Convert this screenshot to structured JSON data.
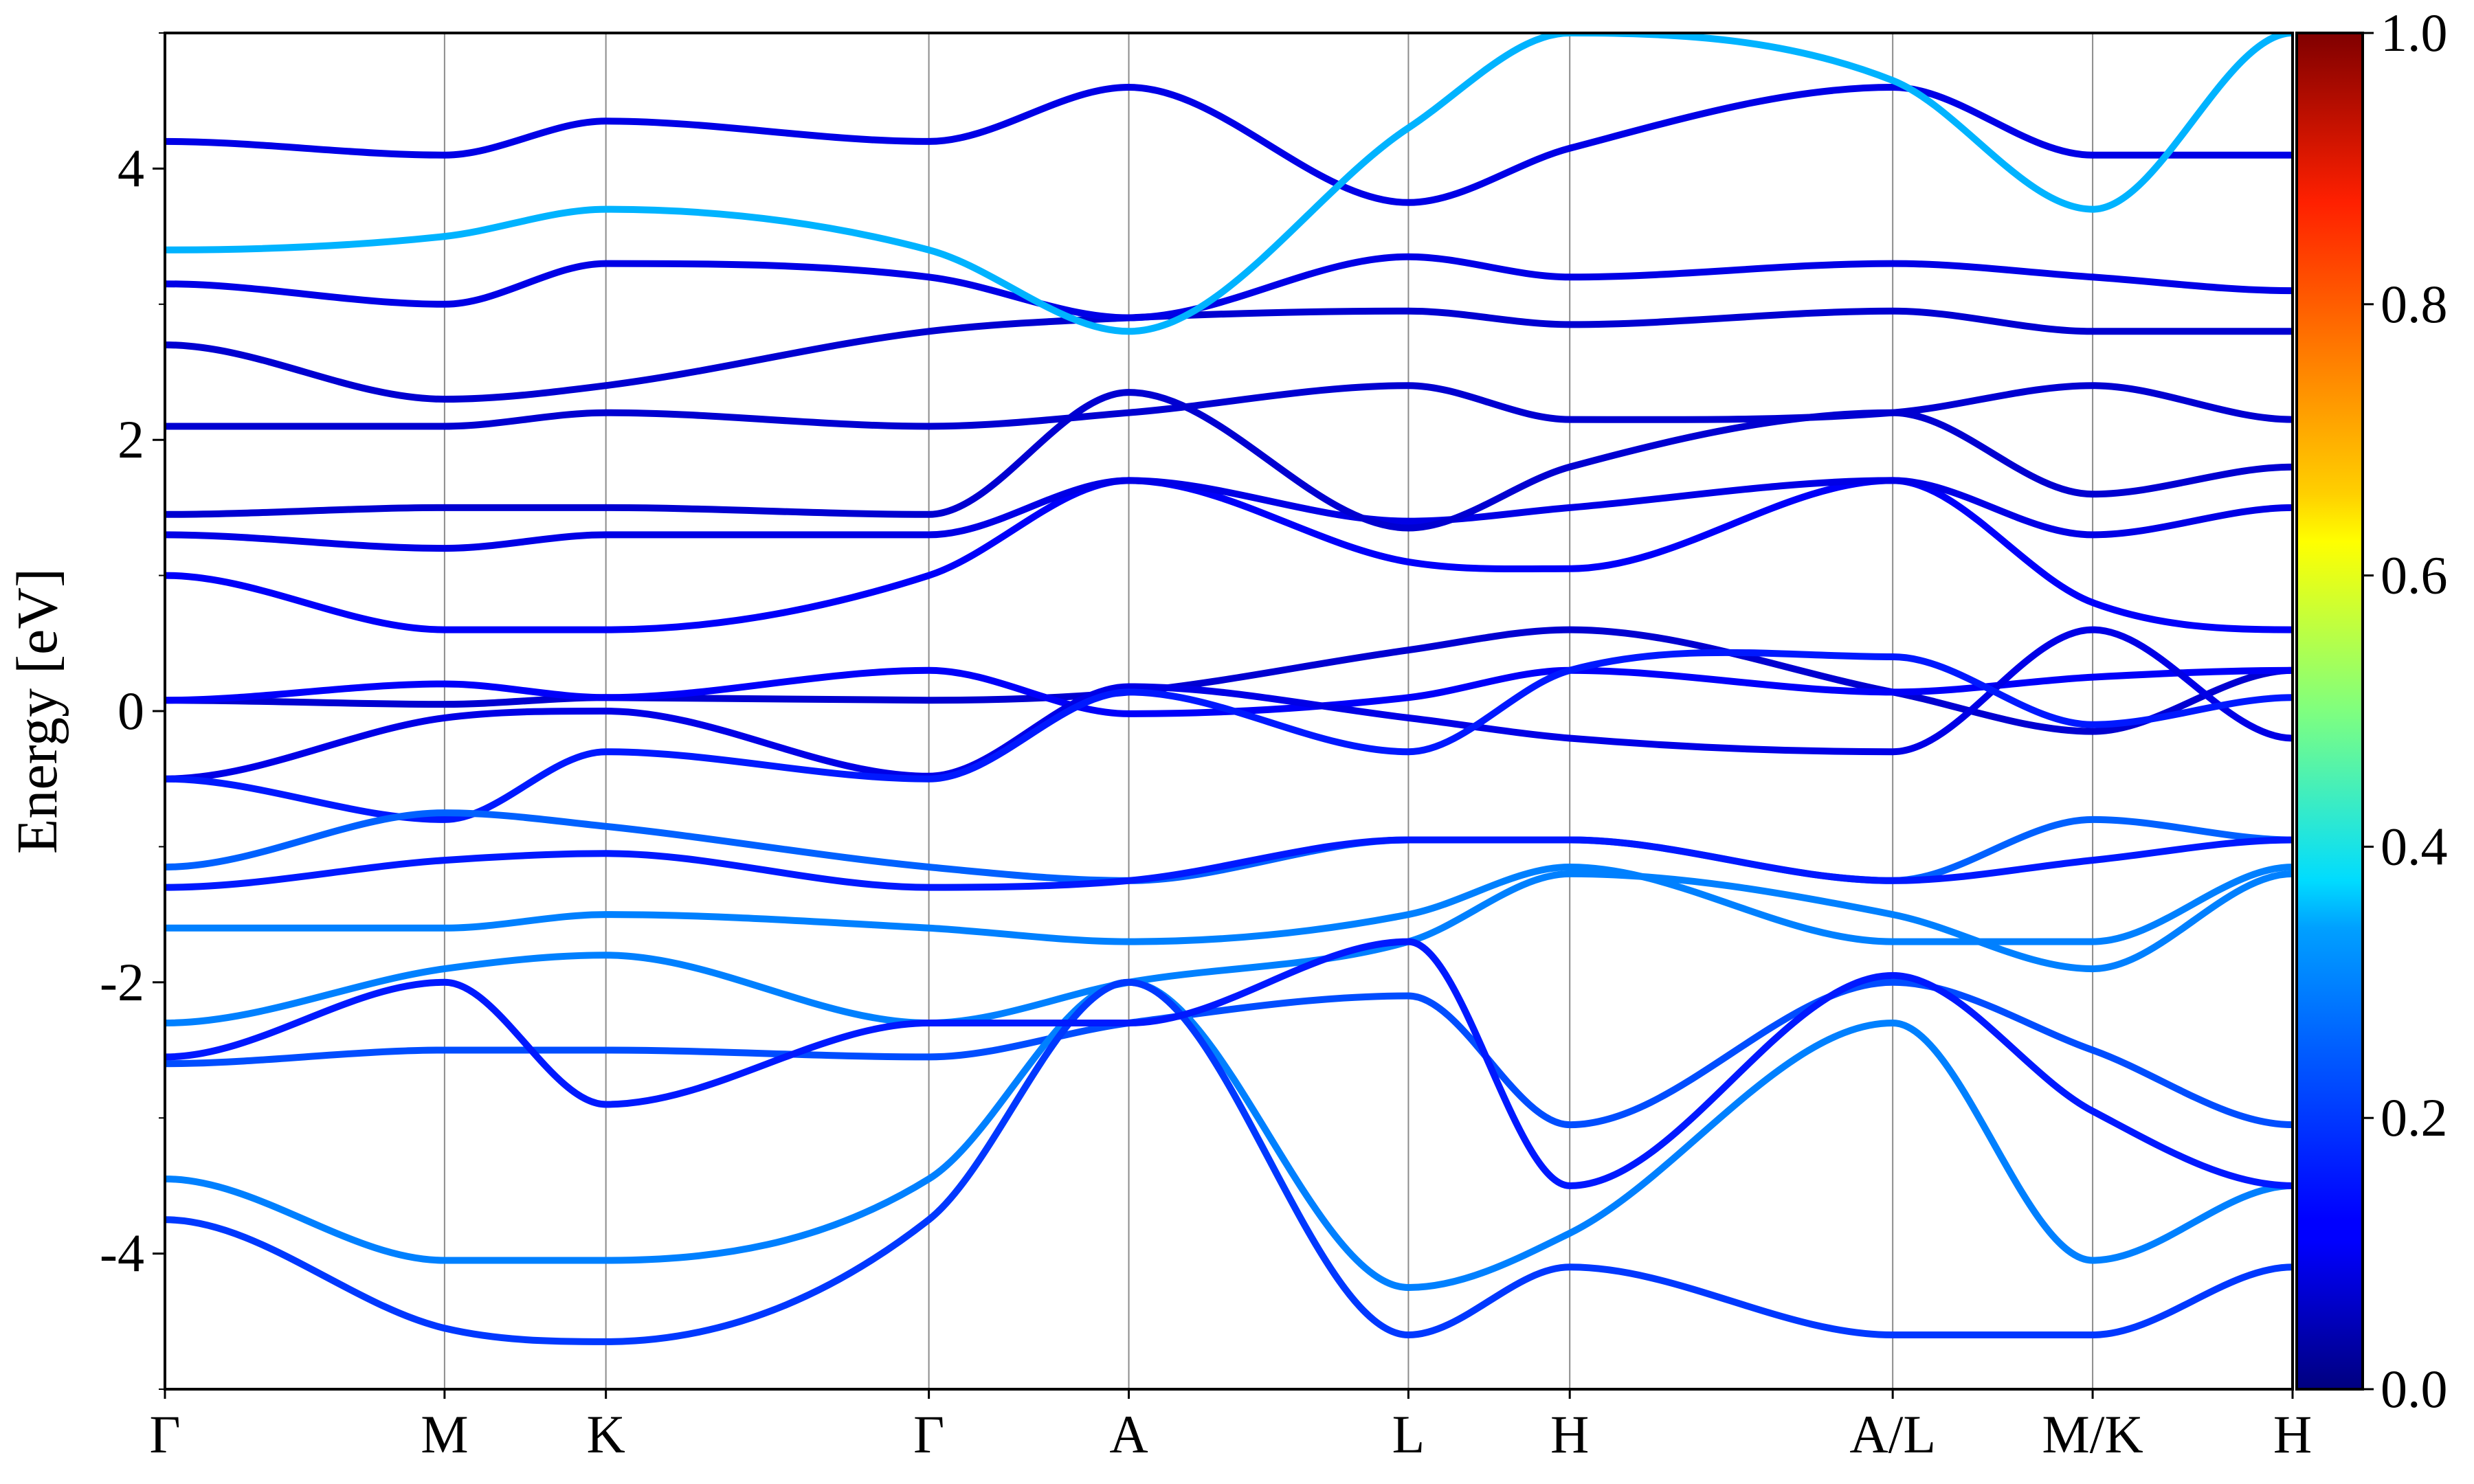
{
  "chart_data": {
    "type": "line",
    "ylabel": "Energy [eV]",
    "ylim": [
      -5,
      5
    ],
    "yticks": [
      -4,
      -2,
      0,
      2,
      4
    ],
    "ytick_labels": [
      "-4",
      "-2",
      "0",
      "2",
      "4"
    ],
    "kpoints": [
      {
        "label": "Γ",
        "x": 0
      },
      {
        "label": "M",
        "x": 1.0
      },
      {
        "label": "K",
        "x": 1.577
      },
      {
        "label": "Γ",
        "x": 2.732
      },
      {
        "label": "A",
        "x": 3.447
      },
      {
        "label": "L",
        "x": 4.447
      },
      {
        "label": "H",
        "x": 5.024
      },
      {
        "label": "A/L",
        "x": 6.179
      },
      {
        "label": "M/K",
        "x": 6.894
      },
      {
        "label": "H",
        "x": 7.609
      }
    ],
    "colorbar": {
      "colormap": "jet",
      "range": [
        0,
        1
      ],
      "ticks": [
        0.0,
        0.2,
        0.4,
        0.6,
        0.8,
        1.0
      ],
      "tick_labels": [
        "0.0",
        "0.2",
        "0.4",
        "0.6",
        "0.8",
        "1.0"
      ]
    },
    "series": [
      {
        "w": 0.08,
        "y": [
          0.08,
          0.05,
          0.1,
          0.08,
          0.14,
          0.45,
          0.6,
          0.14,
          -0.15,
          0.3
        ]
      },
      {
        "w": 0.12,
        "y": [
          0.08,
          0.2,
          0.1,
          0.3,
          -0.02,
          0.1,
          0.3,
          0.14,
          0.25,
          0.3
        ]
      },
      {
        "w": 0.1,
        "y": [
          -0.5,
          -0.05,
          0.0,
          -0.48,
          0.18,
          -0.05,
          -0.2,
          -0.3,
          0.6,
          -0.2
        ]
      },
      {
        "w": 0.15,
        "y": [
          -0.5,
          -0.8,
          -0.3,
          -0.5,
          0.14,
          -0.3,
          0.3,
          0.4,
          -0.1,
          0.1
        ]
      },
      {
        "w": 0.12,
        "y": [
          1.0,
          0.6,
          0.6,
          1.0,
          1.7,
          1.1,
          1.05,
          1.7,
          0.8,
          0.6
        ]
      },
      {
        "w": 0.1,
        "y": [
          1.3,
          1.2,
          1.3,
          1.3,
          1.7,
          1.4,
          1.5,
          1.7,
          1.3,
          1.5
        ]
      },
      {
        "w": 0.08,
        "y": [
          1.45,
          1.5,
          1.5,
          1.45,
          2.35,
          1.35,
          1.8,
          2.2,
          1.6,
          1.8
        ]
      },
      {
        "w": 0.08,
        "y": [
          2.1,
          2.1,
          2.2,
          2.1,
          2.2,
          2.4,
          2.15,
          2.2,
          2.4,
          2.15
        ]
      },
      {
        "w": 0.08,
        "y": [
          2.7,
          2.3,
          2.4,
          2.8,
          2.9,
          2.95,
          2.85,
          2.95,
          2.8,
          2.8
        ]
      },
      {
        "w": 0.1,
        "y": [
          3.15,
          3.0,
          3.3,
          3.2,
          2.9,
          3.35,
          3.2,
          3.3,
          3.2,
          3.1
        ]
      },
      {
        "w": 0.1,
        "y": [
          4.2,
          4.1,
          4.35,
          4.2,
          4.6,
          3.75,
          4.15,
          4.6,
          4.1,
          4.1
        ]
      },
      {
        "w": 0.3,
        "y": [
          3.4,
          3.5,
          3.7,
          3.4,
          2.8,
          4.3,
          5.0,
          4.65,
          3.7,
          5.0
        ]
      },
      {
        "w": 0.22,
        "y": [
          -1.15,
          -0.75,
          -0.85,
          -1.15,
          -1.25,
          -0.95,
          -0.95,
          -1.25,
          -0.8,
          -0.95
        ]
      },
      {
        "w": 0.25,
        "y": [
          -1.6,
          -1.6,
          -1.5,
          -1.6,
          -1.7,
          -1.5,
          -1.15,
          -1.7,
          -1.7,
          -1.15
        ]
      },
      {
        "w": 0.25,
        "y": [
          -2.3,
          -1.9,
          -1.8,
          -2.3,
          -2.0,
          -1.7,
          -1.2,
          -1.5,
          -1.9,
          -1.2
        ]
      },
      {
        "w": 0.2,
        "y": [
          -2.6,
          -2.5,
          -2.5,
          -2.55,
          -2.3,
          -2.1,
          -3.05,
          -2.0,
          -2.5,
          -3.05
        ]
      },
      {
        "w": 0.25,
        "y": [
          -3.45,
          -4.05,
          -4.05,
          -3.45,
          -2.0,
          -4.25,
          -3.85,
          -2.3,
          -4.05,
          -3.5
        ]
      },
      {
        "w": 0.18,
        "y": [
          -3.75,
          -4.55,
          -4.65,
          -3.75,
          -2.0,
          -4.6,
          -4.1,
          -4.6,
          -4.6,
          -4.1
        ]
      },
      {
        "w": 0.15,
        "y": [
          -1.3,
          -1.1,
          -1.05,
          -1.3,
          -1.25,
          -0.95,
          -0.95,
          -1.25,
          -1.1,
          -0.95
        ]
      },
      {
        "w": 0.15,
        "y": [
          -2.55,
          -2.0,
          -2.9,
          -2.3,
          -2.3,
          -1.7,
          -3.5,
          -1.95,
          -2.95,
          -3.5
        ]
      }
    ]
  }
}
